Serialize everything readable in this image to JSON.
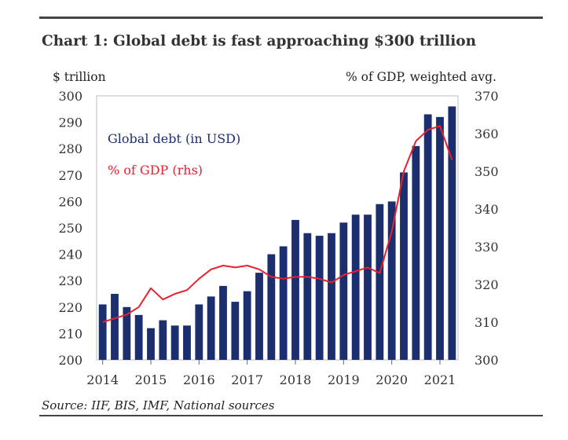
{
  "title": "Chart 1: Global debt is fast approaching $300 trillion",
  "source": "Source: IIF, BIS, IMF, National sources",
  "colors": {
    "bars": "#1b2f6e",
    "line": "#e8202f",
    "rule": "#444444"
  },
  "chart_data": {
    "type": "bar",
    "ylabel_left": "$ trillion",
    "ylabel_right": "% of GDP, weighted avg.",
    "ylim_left": [
      200,
      300
    ],
    "ylim_right": [
      300,
      370
    ],
    "yticks_left": [
      "300",
      "290",
      "280",
      "270",
      "260",
      "250",
      "240",
      "230",
      "220",
      "210",
      "200"
    ],
    "yticks_right": [
      "370",
      "360",
      "350",
      "340",
      "330",
      "320",
      "310",
      "300"
    ],
    "xticks": [
      "2014",
      "2015",
      "2016",
      "2017",
      "2018",
      "2019",
      "2020",
      "2021"
    ],
    "quarters_start": "2014 Q1",
    "series": [
      {
        "name": "Global debt (in USD)",
        "axis": "left",
        "type": "bar",
        "values": [
          221,
          225,
          220,
          217,
          212,
          215,
          213,
          213,
          221,
          224,
          228,
          222,
          226,
          233,
          240,
          243,
          253,
          248,
          247,
          248,
          252,
          255,
          255,
          259,
          260,
          271,
          281,
          293,
          292,
          296
        ]
      },
      {
        "name": "% of GDP (rhs)",
        "axis": "right",
        "type": "line",
        "values": [
          310,
          311,
          312,
          314,
          319,
          316,
          317.5,
          318.5,
          321.5,
          324,
          325,
          324.5,
          325,
          324,
          322,
          321.5,
          322,
          322,
          321.5,
          320.5,
          322.5,
          323.5,
          324.5,
          323,
          334,
          350,
          358,
          361,
          362,
          353
        ]
      }
    ]
  }
}
